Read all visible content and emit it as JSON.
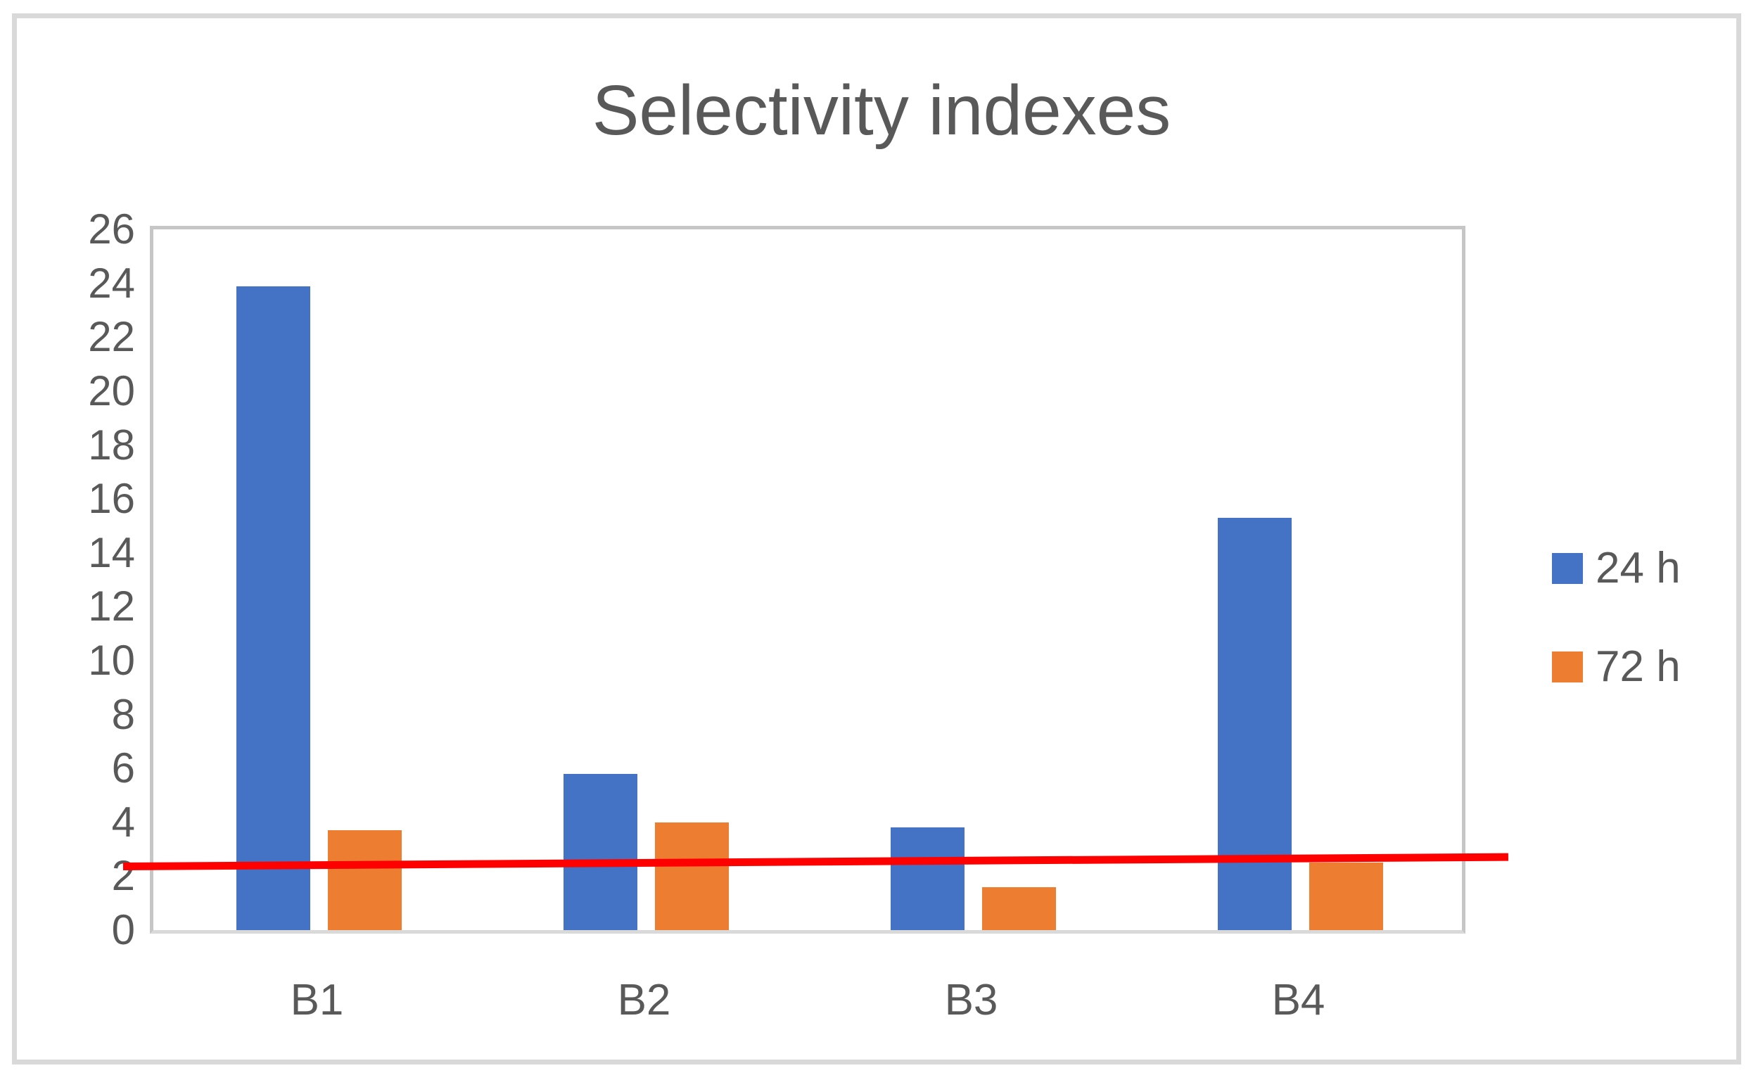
{
  "chart_data": {
    "type": "bar",
    "title": "Selectivity indexes",
    "categories": [
      "B1",
      "B2",
      "B3",
      "B4"
    ],
    "series": [
      {
        "name": "24 h",
        "color": "#4472c4",
        "values": [
          23.9,
          5.8,
          3.8,
          15.3
        ]
      },
      {
        "name": "72 h",
        "color": "#ed7d31",
        "values": [
          3.7,
          4.0,
          1.6,
          2.5
        ]
      }
    ],
    "trendline": {
      "color": "#ff0000",
      "start_value": 2.35,
      "end_value": 2.7
    },
    "ylim": [
      0,
      26
    ],
    "ytick_step": 2,
    "ytick_labels": [
      "0",
      "2",
      "4",
      "6",
      "8",
      "10",
      "12",
      "14",
      "16",
      "18",
      "20",
      "22",
      "24",
      "26"
    ],
    "xlabel": "",
    "ylabel": "",
    "grid": false,
    "legend_position": "right",
    "plot_background": "#ffffff"
  },
  "colors": {
    "title_text": "#595959",
    "axis_text": "#595959",
    "plot_border": "#c6c6c6",
    "figure_border": "#d9d9d9",
    "series_24h": "#4472c4",
    "series_72h": "#ed7d31",
    "trendline": "#ff0000"
  }
}
